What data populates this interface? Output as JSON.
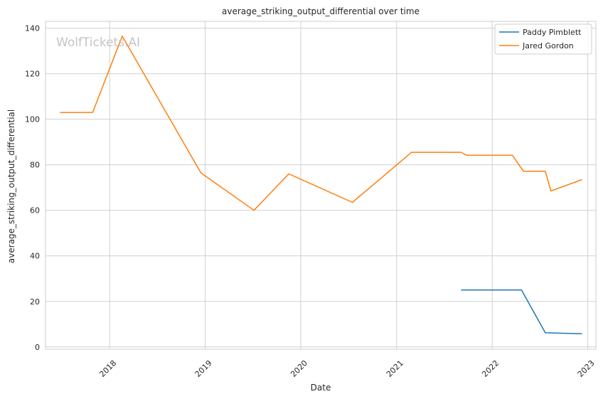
{
  "chart_data": {
    "type": "line",
    "title": "average_striking_output_differential over time",
    "xlabel": "Date",
    "ylabel": "average_striking_output_differential",
    "watermark": "WolfTickets.AI",
    "x_ticks": [
      "2018",
      "2019",
      "2020",
      "2021",
      "2022",
      "2023"
    ],
    "xlim": [
      "2017-05-01",
      "2023-02-01"
    ],
    "ylim": [
      -1,
      143
    ],
    "y_ticks": [
      0,
      20,
      40,
      60,
      80,
      100,
      120,
      140
    ],
    "grid": true,
    "legend": {
      "placement": "top-right"
    },
    "series": [
      {
        "name": "Paddy Pimblett",
        "color": "#1f77b4",
        "points": [
          {
            "date": "2021-09-04",
            "value": 25
          },
          {
            "date": "2022-03-19",
            "value": 25
          },
          {
            "date": "2022-04-23",
            "value": 25
          },
          {
            "date": "2022-07-23",
            "value": 6.2
          },
          {
            "date": "2022-12-10",
            "value": 5.8
          }
        ]
      },
      {
        "name": "Jared Gordon",
        "color": "#ff7f0e",
        "points": [
          {
            "date": "2017-06-25",
            "value": 103
          },
          {
            "date": "2017-10-28",
            "value": 103
          },
          {
            "date": "2018-02-18",
            "value": 136.5
          },
          {
            "date": "2018-12-15",
            "value": 76.5
          },
          {
            "date": "2019-07-06",
            "value": 60
          },
          {
            "date": "2019-11-16",
            "value": 76
          },
          {
            "date": "2020-07-16",
            "value": 63.5
          },
          {
            "date": "2021-02-27",
            "value": 85.5
          },
          {
            "date": "2021-09-04",
            "value": 85.5
          },
          {
            "date": "2021-09-25",
            "value": 84.2
          },
          {
            "date": "2022-03-19",
            "value": 84.2
          },
          {
            "date": "2022-04-30",
            "value": 77.2
          },
          {
            "date": "2022-07-23",
            "value": 77.2
          },
          {
            "date": "2022-08-13",
            "value": 68.5
          },
          {
            "date": "2022-12-10",
            "value": 73.5
          }
        ]
      }
    ]
  }
}
